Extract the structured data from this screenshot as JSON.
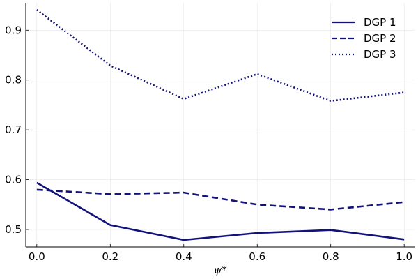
{
  "chart_data": {
    "type": "line",
    "title": "",
    "xlabel": "ψ*",
    "ylabel": "",
    "x": [
      0.0,
      0.2,
      0.4,
      0.6,
      0.8,
      1.0
    ],
    "xlim": [
      -0.03,
      1.03
    ],
    "ylim": [
      0.465,
      0.955
    ],
    "xticks": [
      0.0,
      0.2,
      0.4,
      0.6,
      0.8,
      1.0
    ],
    "xtick_labels": [
      "0.0",
      "0.2",
      "0.4",
      "0.6",
      "0.8",
      "1.0"
    ],
    "yticks": [
      0.5,
      0.6,
      0.7,
      0.8,
      0.9
    ],
    "ytick_labels": [
      "0.5",
      "0.6",
      "0.7",
      "0.8",
      "0.9"
    ],
    "grid": true,
    "legend_position": "top-right",
    "line_color": "#13127a",
    "series": [
      {
        "name": "DGP 1",
        "style": "solid",
        "values": [
          0.594,
          0.509,
          0.479,
          0.493,
          0.499,
          0.48
        ]
      },
      {
        "name": "DGP 2",
        "style": "dashed",
        "values": [
          0.58,
          0.571,
          0.574,
          0.55,
          0.54,
          0.555
        ]
      },
      {
        "name": "DGP 3",
        "style": "dotted",
        "values": [
          0.941,
          0.829,
          0.762,
          0.812,
          0.758,
          0.775
        ]
      }
    ]
  }
}
